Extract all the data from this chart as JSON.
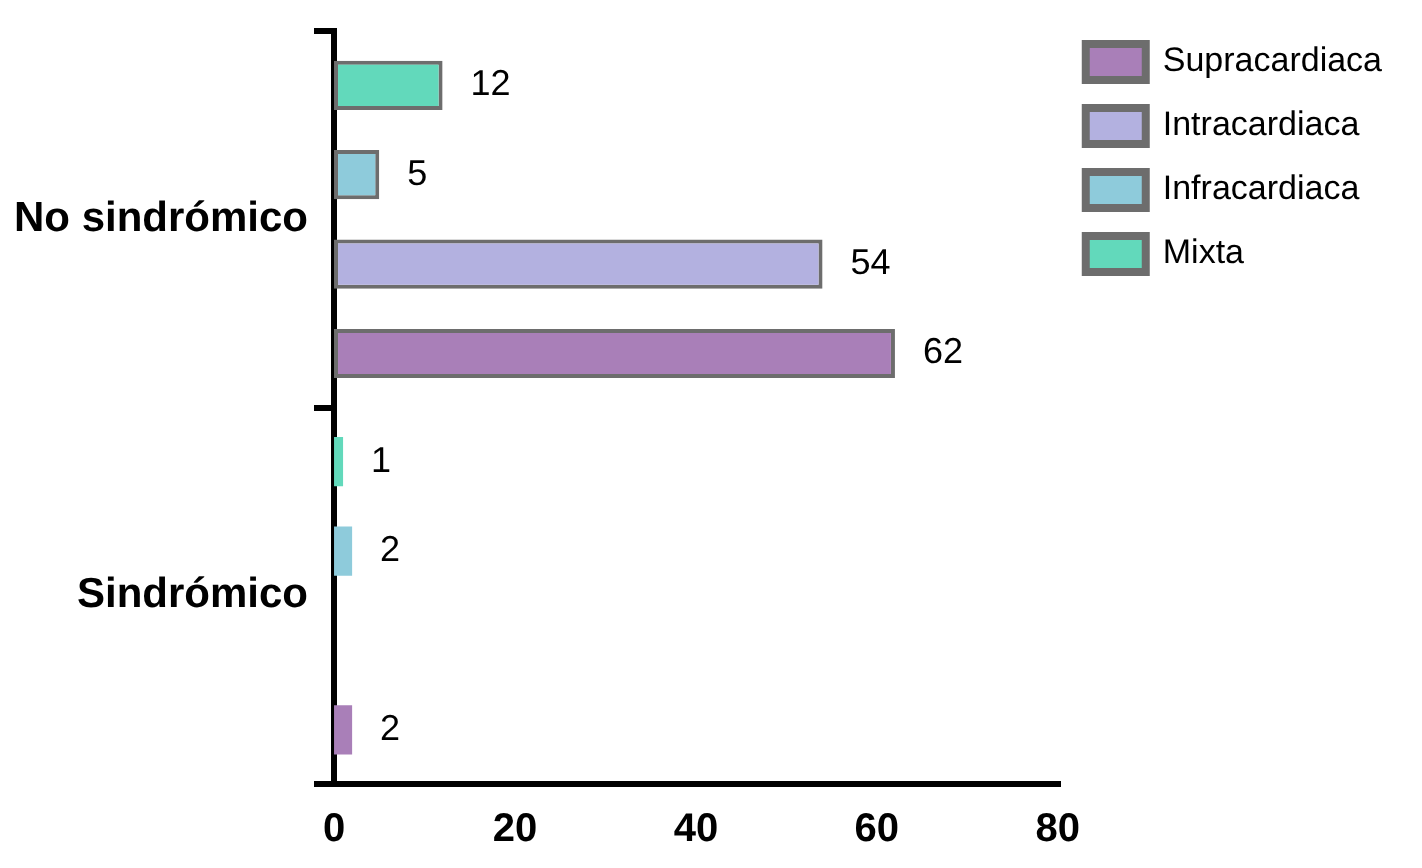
{
  "chart_data": {
    "type": "bar",
    "orientation": "horizontal",
    "categories": [
      "No sindrómico",
      "Sindrómico"
    ],
    "series": [
      {
        "name": "Supracardiaca",
        "color": "#a97fb8",
        "values": [
          62,
          2
        ],
        "value_labels": [
          "62",
          "2"
        ]
      },
      {
        "name": "Intracardiaca",
        "color": "#b3b1e0",
        "values": [
          54,
          0
        ],
        "value_labels": [
          "54",
          null
        ]
      },
      {
        "name": "Infracardiaca",
        "color": "#8ecbdb",
        "values": [
          5,
          2
        ],
        "value_labels": [
          "5",
          "2"
        ]
      },
      {
        "name": "Mixta",
        "color": "#62d9bb",
        "values": [
          12,
          1
        ],
        "value_labels": [
          "12",
          "1"
        ]
      }
    ],
    "xlim": [
      0,
      80
    ],
    "xticks": [
      0,
      20,
      40,
      60,
      80
    ],
    "grid": false,
    "legend": "top right"
  }
}
